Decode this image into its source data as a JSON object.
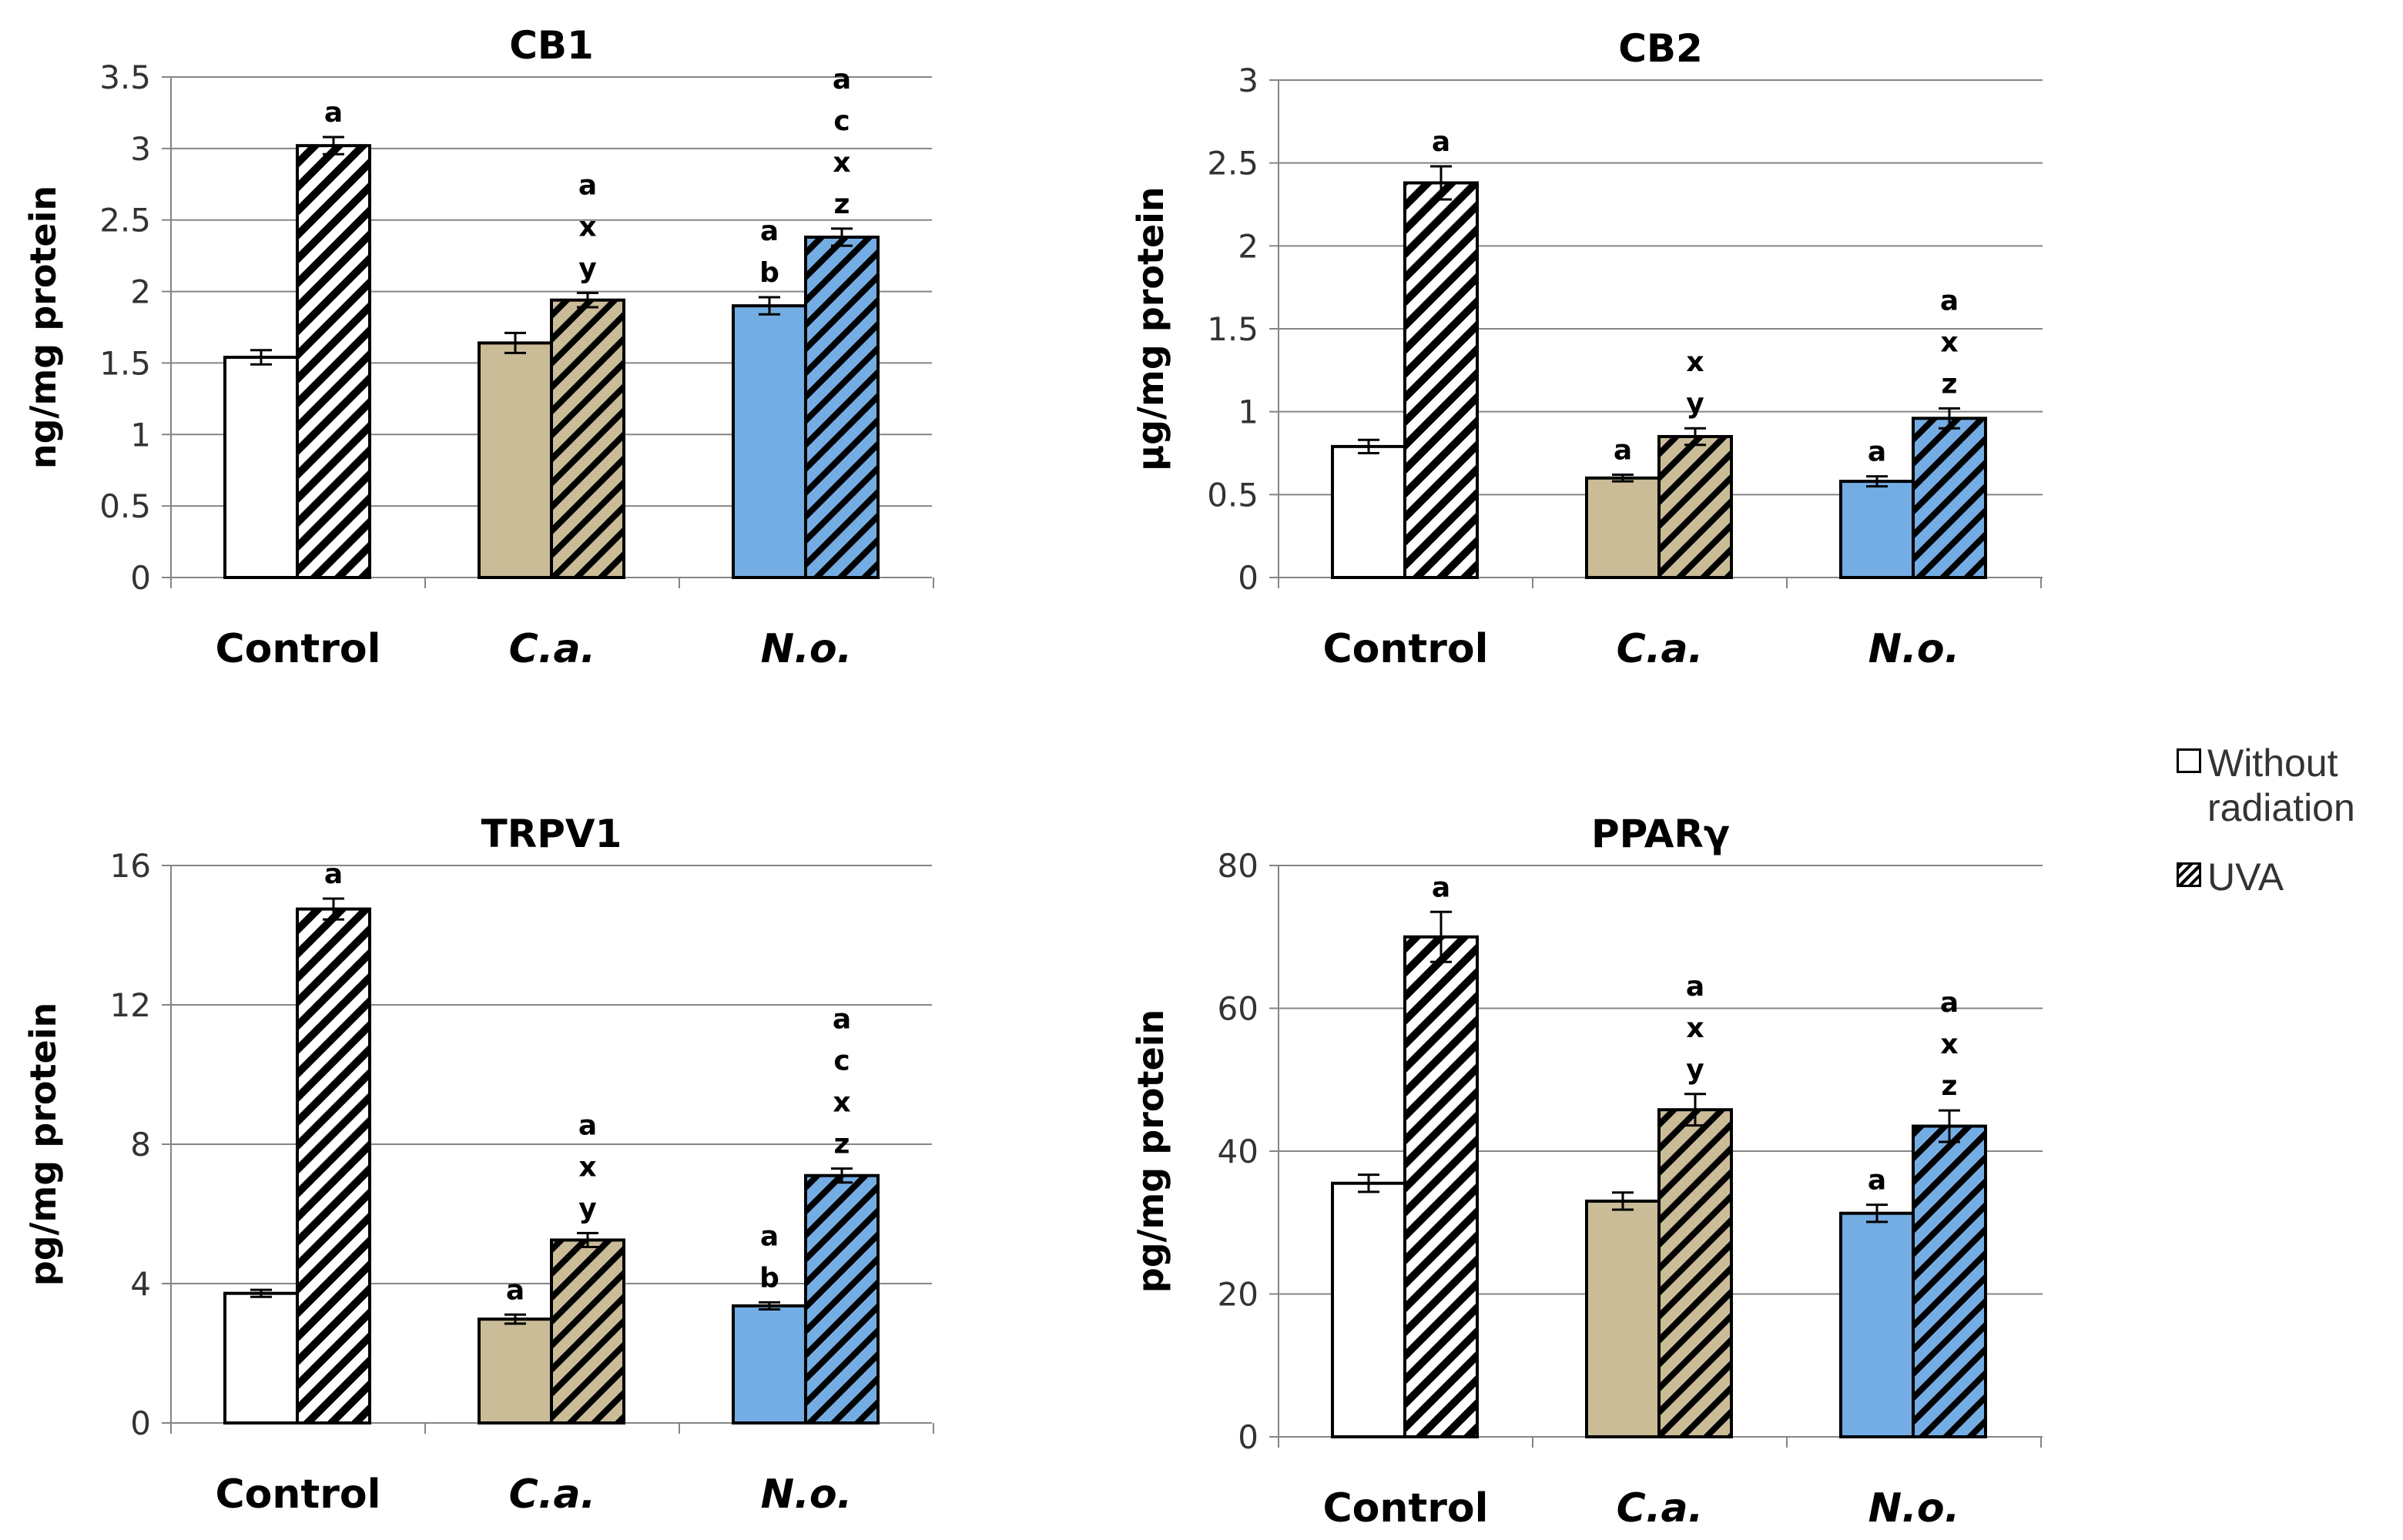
{
  "chart_data": [
    {
      "type": "bar",
      "title": "CB1",
      "ylabel": "ng/mg protein",
      "xlabel": "",
      "ylim": [
        0,
        3.5
      ],
      "yticks": [
        0,
        0.5,
        1,
        1.5,
        2,
        2.5,
        3,
        3.5
      ],
      "ytick_labels": [
        "0",
        "0.5",
        "1",
        "1.5",
        "2",
        "2.5",
        "3",
        "3.5"
      ],
      "categories": [
        "Control",
        "C.a.",
        "N.o."
      ],
      "category_italic": [
        false,
        true,
        true
      ],
      "grid": true,
      "series": [
        {
          "name": "Without radiation",
          "values": [
            1.54,
            1.64,
            1.9
          ],
          "errors": [
            0.05,
            0.07,
            0.06
          ],
          "annotations": [
            [],
            [],
            [
              "a",
              "b"
            ]
          ]
        },
        {
          "name": "UVA",
          "values": [
            3.02,
            1.94,
            2.38
          ],
          "errors": [
            0.06,
            0.05,
            0.06
          ],
          "annotations": [
            [
              "a"
            ],
            [
              "a",
              "x",
              "y"
            ],
            [
              "a",
              "c",
              "x",
              "z"
            ]
          ]
        }
      ]
    },
    {
      "type": "bar",
      "title": "CB2",
      "ylabel": "µg/mg protein",
      "xlabel": "",
      "ylim": [
        0,
        3
      ],
      "yticks": [
        0,
        0.5,
        1,
        1.5,
        2,
        2.5,
        3
      ],
      "ytick_labels": [
        "0",
        "0.5",
        "1",
        "1.5",
        "2",
        "2.5",
        "3"
      ],
      "categories": [
        "Control",
        "C.a.",
        "N.o."
      ],
      "category_italic": [
        false,
        true,
        true
      ],
      "grid": true,
      "series": [
        {
          "name": "Without radiation",
          "values": [
            0.79,
            0.6,
            0.58
          ],
          "errors": [
            0.04,
            0.02,
            0.03
          ],
          "annotations": [
            [],
            [
              "a"
            ],
            [
              "a"
            ]
          ]
        },
        {
          "name": "UVA",
          "values": [
            2.38,
            0.85,
            0.96
          ],
          "errors": [
            0.1,
            0.05,
            0.06
          ],
          "annotations": [
            [
              "a"
            ],
            [
              "x",
              "y"
            ],
            [
              "a",
              "x",
              "z"
            ]
          ]
        }
      ]
    },
    {
      "type": "bar",
      "title": "TRPV1",
      "ylabel": "pg/mg protein",
      "xlabel": "",
      "ylim": [
        0,
        16
      ],
      "yticks": [
        0,
        4,
        8,
        12,
        16
      ],
      "ytick_labels": [
        "0",
        "4",
        "8",
        "12",
        "16"
      ],
      "categories": [
        "Control",
        "C.a.",
        "N.o."
      ],
      "category_italic": [
        false,
        true,
        true
      ],
      "grid": true,
      "series": [
        {
          "name": "Without radiation",
          "values": [
            3.72,
            2.98,
            3.36
          ],
          "errors": [
            0.1,
            0.13,
            0.1
          ],
          "annotations": [
            [],
            [
              "a"
            ],
            [
              "a",
              "b"
            ]
          ]
        },
        {
          "name": "UVA",
          "values": [
            14.75,
            5.25,
            7.1
          ],
          "errors": [
            0.3,
            0.2,
            0.2
          ],
          "annotations": [
            [
              "a"
            ],
            [
              "a",
              "x",
              "y"
            ],
            [
              "a",
              "c",
              "x",
              "z"
            ]
          ]
        }
      ]
    },
    {
      "type": "bar",
      "title": "PPARγ",
      "ylabel": "pg/mg protein",
      "xlabel": "",
      "ylim": [
        0,
        80
      ],
      "yticks": [
        0,
        20,
        40,
        60,
        80
      ],
      "ytick_labels": [
        "0",
        "20",
        "40",
        "60",
        "80"
      ],
      "categories": [
        "Control",
        "C.a.",
        "N.o."
      ],
      "category_italic": [
        false,
        true,
        true
      ],
      "grid": true,
      "series": [
        {
          "name": "Without radiation",
          "values": [
            35.5,
            33.0,
            31.3
          ],
          "errors": [
            1.2,
            1.2,
            1.2
          ],
          "annotations": [
            [],
            [],
            [
              "a"
            ]
          ]
        },
        {
          "name": "UVA",
          "values": [
            70.0,
            45.8,
            43.5
          ],
          "errors": [
            3.5,
            2.2,
            2.2
          ],
          "annotations": [
            [
              "a"
            ],
            [
              "a",
              "x",
              "y"
            ],
            [
              "a",
              "x",
              "z"
            ]
          ]
        }
      ]
    }
  ],
  "legend": {
    "placement": "right",
    "items": [
      {
        "label_lines": [
          "Without",
          "radiation"
        ],
        "pattern": "solid-white"
      },
      {
        "label_lines": [
          "UVA"
        ],
        "pattern": "hatch"
      }
    ]
  },
  "colors": {
    "control_plain": "#ffffff",
    "ca_plain": "#c9bc97",
    "no_plain": "#74ade3",
    "control_hatch_bg": "#ffffff",
    "ca_hatch_bg": "#c9bc97",
    "no_hatch_bg": "#74ade3",
    "hatch_line": "#000000",
    "axis": "#858585",
    "grid": "#858585",
    "text": "#000000",
    "tick_text": "#333333"
  }
}
